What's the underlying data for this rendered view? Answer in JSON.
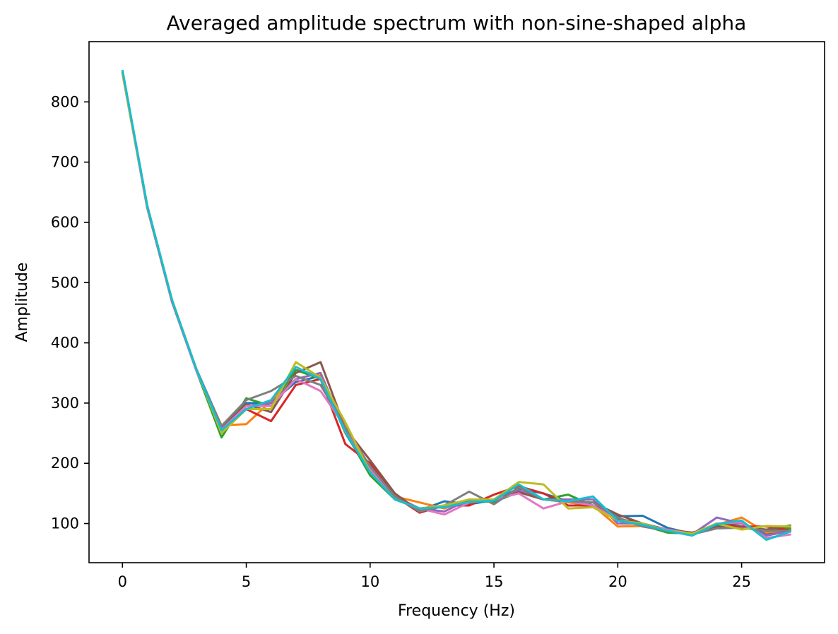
{
  "chart_data": {
    "type": "line",
    "title": "Averaged amplitude spectrum with non-sine-shaped alpha",
    "xlabel": "Frequency (Hz)",
    "ylabel": "Amplitude",
    "xlim": [
      -1.35,
      28.35
    ],
    "ylim": [
      35,
      900
    ],
    "xticks": [
      0,
      5,
      10,
      15,
      20,
      25
    ],
    "xtick_labels": [
      "0",
      "5",
      "10",
      "15",
      "20",
      "25"
    ],
    "yticks": [
      100,
      200,
      300,
      400,
      500,
      600,
      700,
      800
    ],
    "ytick_labels": [
      "100",
      "200",
      "300",
      "400",
      "500",
      "600",
      "700",
      "800"
    ],
    "grid": false,
    "legend": "none",
    "x": [
      0,
      1,
      2,
      3,
      4,
      5,
      6,
      7,
      8,
      9,
      10,
      11,
      12,
      13,
      14,
      15,
      16,
      17,
      18,
      19,
      20,
      21,
      22,
      23,
      24,
      25,
      26,
      27
    ],
    "series": [
      {
        "color": "#1f77b4",
        "values": [
          852,
          628,
          470,
          355,
          262,
          300,
          300,
          335,
          345,
          250,
          185,
          145,
          122,
          137,
          132,
          139,
          158,
          150,
          137,
          130,
          112,
          113,
          93,
          83,
          100,
          100,
          82,
          92
        ]
      },
      {
        "color": "#ff7f0e",
        "values": [
          847,
          625,
          469,
          352,
          263,
          265,
          303,
          355,
          345,
          250,
          195,
          145,
          135,
          125,
          140,
          136,
          155,
          140,
          135,
          130,
          95,
          96,
          88,
          82,
          98,
          110,
          85,
          90
        ]
      },
      {
        "color": "#2ca02c",
        "values": [
          850,
          626,
          468,
          352,
          243,
          308,
          295,
          355,
          340,
          252,
          180,
          140,
          125,
          130,
          138,
          136,
          152,
          140,
          148,
          130,
          105,
          97,
          85,
          83,
          97,
          95,
          90,
          93
        ]
      },
      {
        "color": "#d62728",
        "values": [
          849,
          625,
          470,
          353,
          252,
          290,
          270,
          330,
          340,
          232,
          200,
          145,
          118,
          130,
          130,
          148,
          162,
          150,
          130,
          130,
          108,
          100,
          88,
          82,
          100,
          95,
          95,
          88
        ]
      },
      {
        "color": "#9467bd",
        "values": [
          848,
          624,
          468,
          352,
          255,
          295,
          300,
          340,
          350,
          255,
          190,
          145,
          125,
          120,
          140,
          138,
          155,
          140,
          140,
          140,
          100,
          100,
          88,
          82,
          110,
          100,
          80,
          88
        ]
      },
      {
        "color": "#8c564b",
        "values": [
          851,
          625,
          470,
          354,
          258,
          298,
          285,
          350,
          368,
          258,
          205,
          150,
          120,
          130,
          137,
          140,
          152,
          140,
          137,
          135,
          115,
          100,
          90,
          85,
          95,
          92,
          90,
          97
        ]
      },
      {
        "color": "#e377c2",
        "values": [
          848,
          624,
          469,
          352,
          256,
          295,
          295,
          340,
          320,
          260,
          190,
          140,
          125,
          115,
          135,
          140,
          150,
          125,
          137,
          130,
          105,
          98,
          90,
          83,
          100,
          102,
          76,
          82
        ]
      },
      {
        "color": "#7f7f7f",
        "values": [
          850,
          625,
          470,
          354,
          262,
          305,
          320,
          345,
          330,
          260,
          195,
          145,
          120,
          130,
          153,
          132,
          160,
          140,
          137,
          135,
          110,
          95,
          88,
          82,
          92,
          93,
          88,
          88
        ]
      },
      {
        "color": "#bcbd22",
        "values": [
          848,
          627,
          472,
          354,
          250,
          290,
          290,
          368,
          342,
          268,
          185,
          140,
          125,
          130,
          140,
          140,
          169,
          165,
          125,
          127,
          105,
          100,
          88,
          83,
          100,
          90,
          96,
          95
        ]
      },
      {
        "color": "#17becf",
        "values": [
          853,
          628,
          471,
          354,
          255,
          290,
          305,
          360,
          340,
          252,
          185,
          140,
          125,
          127,
          136,
          138,
          165,
          140,
          137,
          145,
          105,
          98,
          88,
          80,
          99,
          105,
          73,
          87
        ]
      }
    ]
  }
}
